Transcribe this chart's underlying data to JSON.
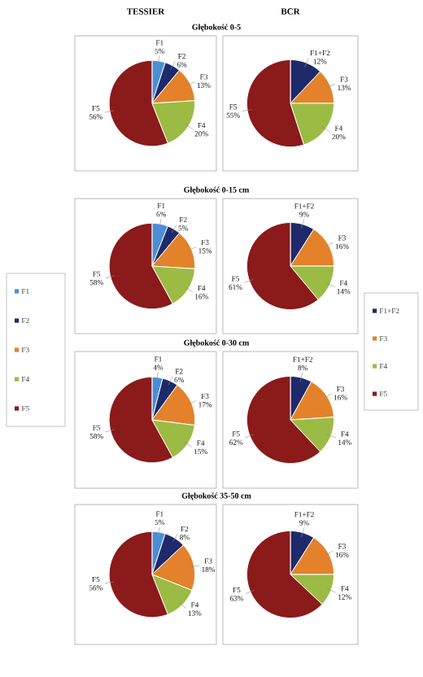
{
  "chart_data": [
    {
      "type": "pie",
      "title": "TESSIER",
      "subtitle": "Głębokość 0-5",
      "categories": [
        "F1",
        "F2",
        "F3",
        "F4",
        "F5"
      ],
      "values": [
        5,
        6,
        13,
        20,
        56
      ],
      "value_labels": [
        "5%",
        "6%",
        "13%",
        "20%",
        "56%"
      ],
      "colors": [
        "#4a8fd6",
        "#1f2a6b",
        "#e3822a",
        "#9bbb45",
        "#8b1a1a"
      ]
    },
    {
      "type": "pie",
      "title": "BCR",
      "categories": [
        "F1+F2",
        "F3",
        "F4",
        "F5"
      ],
      "values": [
        12,
        13,
        20,
        55
      ],
      "value_labels": [
        "12%",
        "13%",
        "20%",
        "55%"
      ],
      "colors": [
        "#1f2a6b",
        "#e3822a",
        "#9bbb45",
        "#8b1a1a"
      ]
    },
    {
      "type": "pie",
      "subtitle": "Głębokość 0-15 cm",
      "legend": "left",
      "categories": [
        "F1",
        "F2",
        "F3",
        "F4",
        "F5"
      ],
      "values": [
        6,
        5,
        15,
        16,
        58
      ],
      "value_labels": [
        "6%",
        "5%",
        "15%",
        "16%",
        "58%"
      ],
      "colors": [
        "#4a8fd6",
        "#1f2a6b",
        "#e3822a",
        "#9bbb45",
        "#8b1a1a"
      ]
    },
    {
      "type": "pie",
      "legend": "right",
      "categories": [
        "F1+F2",
        "F3",
        "F4",
        "F5"
      ],
      "values": [
        9,
        16,
        14,
        61
      ],
      "value_labels": [
        "9%",
        "16%",
        "14%",
        "61%"
      ],
      "colors": [
        "#1f2a6b",
        "#e3822a",
        "#9bbb45",
        "#8b1a1a"
      ]
    },
    {
      "type": "pie",
      "subtitle": "Głębokość 0-30 cm",
      "categories": [
        "F1",
        "F2",
        "F3",
        "F4",
        "F5"
      ],
      "values": [
        4,
        6,
        17,
        15,
        58
      ],
      "value_labels": [
        "4%",
        "6%",
        "17%",
        "15%",
        "58%"
      ],
      "colors": [
        "#4a8fd6",
        "#1f2a6b",
        "#e3822a",
        "#9bbb45",
        "#8b1a1a"
      ]
    },
    {
      "type": "pie",
      "categories": [
        "F1+F2",
        "F3",
        "F4",
        "F5"
      ],
      "values": [
        8,
        16,
        14,
        62
      ],
      "value_labels": [
        "8%",
        "16%",
        "14%",
        "62%"
      ],
      "colors": [
        "#1f2a6b",
        "#e3822a",
        "#9bbb45",
        "#8b1a1a"
      ]
    },
    {
      "type": "pie",
      "subtitle": "Głębokość 35-50 cm",
      "categories": [
        "F1",
        "F2",
        "F3",
        "F4",
        "F5"
      ],
      "values": [
        5,
        8,
        18,
        13,
        56
      ],
      "value_labels": [
        "5%",
        "8%",
        "18%",
        "13%",
        "56%"
      ],
      "colors": [
        "#4a8fd6",
        "#1f2a6b",
        "#e3822a",
        "#9bbb45",
        "#8b1a1a"
      ]
    },
    {
      "type": "pie",
      "categories": [
        "F1+F2",
        "F3",
        "F4",
        "F5"
      ],
      "values": [
        9,
        16,
        12,
        63
      ],
      "value_labels": [
        "9%",
        "16%",
        "12%",
        "63%"
      ],
      "colors": [
        "#1f2a6b",
        "#e3822a",
        "#9bbb45",
        "#8b1a1a"
      ]
    }
  ]
}
